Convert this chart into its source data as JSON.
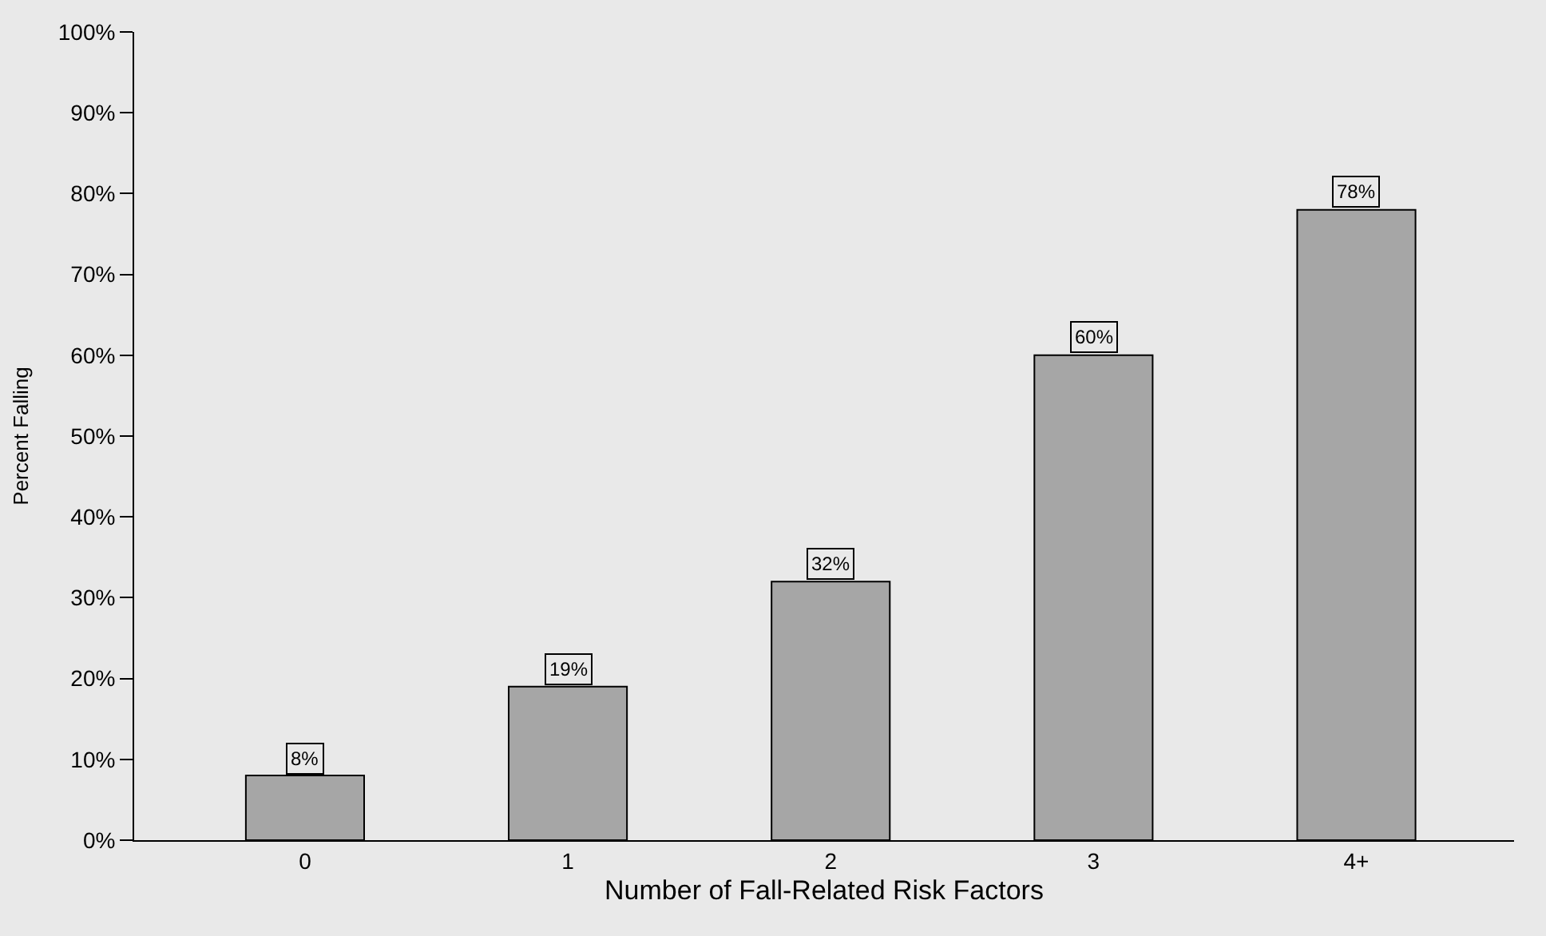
{
  "chart_data": {
    "type": "bar",
    "xlabel": "Number of Fall-Related Risk Factors",
    "ylabel": "Percent Falling",
    "categories": [
      "0",
      "1",
      "2",
      "3",
      "4+"
    ],
    "values": [
      8,
      19,
      32,
      60,
      78
    ],
    "value_labels": [
      "8%",
      "19%",
      "32%",
      "60%",
      "78%"
    ],
    "color": "#a6a6a6",
    "ylim": [
      0,
      100
    ],
    "yticks": [
      {
        "value": 0,
        "label": "0%"
      },
      {
        "value": 10,
        "label": "10%"
      },
      {
        "value": 20,
        "label": "20%"
      },
      {
        "value": 30,
        "label": "30%"
      },
      {
        "value": 40,
        "label": "40%"
      },
      {
        "value": 50,
        "label": "50%"
      },
      {
        "value": 60,
        "label": "60%"
      },
      {
        "value": 70,
        "label": "70%"
      },
      {
        "value": 80,
        "label": "80%"
      },
      {
        "value": 90,
        "label": "90%"
      },
      {
        "value": 100,
        "label": "100%"
      }
    ],
    "grid": false,
    "legend": false
  }
}
